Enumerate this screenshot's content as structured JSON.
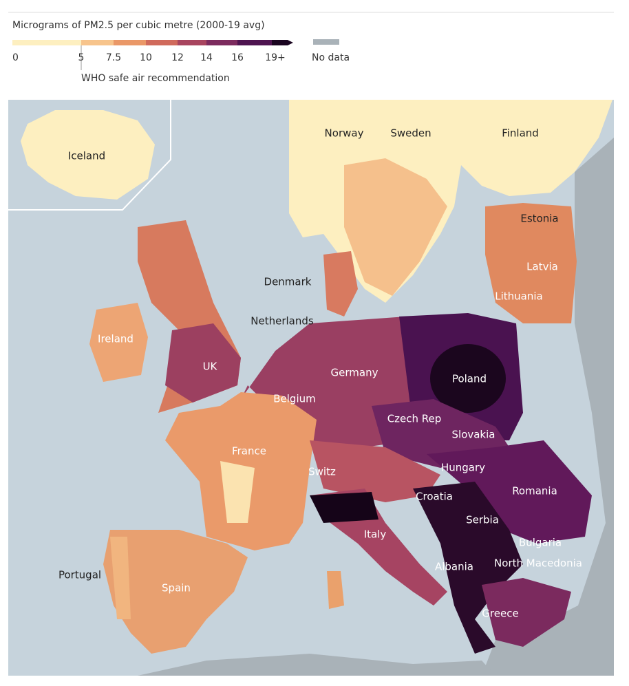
{
  "legend": {
    "title": "Micrograms of PM2.5 per cubic metre (2000-19 avg)",
    "ticks": [
      "0",
      "5",
      "7.5",
      "10",
      "12",
      "14",
      "16",
      "19+"
    ],
    "no_data": "No data",
    "who_note": "WHO safe air recommendation"
  },
  "map": {
    "labels": [
      "Iceland",
      "Norway",
      "Sweden",
      "Finland",
      "Estonia",
      "Latvia",
      "Lithuania",
      "Denmark",
      "Netherlands",
      "Ireland",
      "UK",
      "Germany",
      "Poland",
      "Belgium",
      "Czech Rep",
      "Slovakia",
      "France",
      "Switz",
      "Hungary",
      "Romania",
      "Croatia",
      "Serbia",
      "Italy",
      "Bulgaria",
      "Albania",
      "North Macedonia",
      "Portugal",
      "Spain",
      "Greece"
    ]
  }
}
